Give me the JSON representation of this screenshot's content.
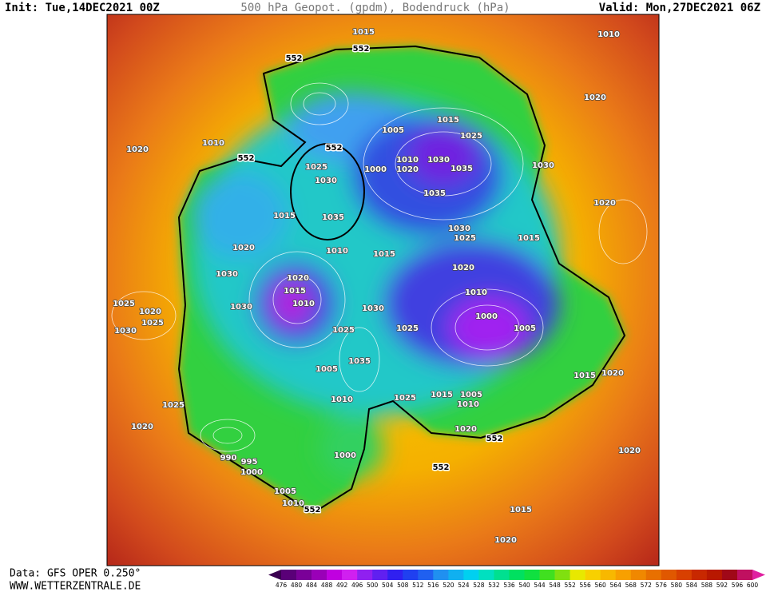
{
  "header": {
    "init": "Init: Tue,14DEC2021 00Z",
    "title": "500 hPa Geopot. (gpdm), Bodendruck (hPa)",
    "valid": "Valid: Mon,27DEC2021 06Z"
  },
  "footer": {
    "data": "Data: GFS OPER 0.250°",
    "url": "WWW.WETTERZENTRALE.DE"
  },
  "map": {
    "contour_labels": [
      1015,
      1010,
      552,
      552,
      1020,
      1005,
      1015,
      1025,
      1020,
      1010,
      552,
      552,
      1030,
      1010,
      1020,
      1000,
      1035,
      1030,
      1025,
      1030,
      1035,
      1020,
      1015,
      1035,
      1030,
      1025,
      1015,
      1020,
      1010,
      1015,
      1020,
      1030,
      1020,
      1015,
      1010,
      1010,
      1025,
      1020,
      1030,
      1030,
      1000,
      1005,
      1025,
      1030,
      1025,
      1025,
      1035,
      1005,
      1015,
      1020,
      1010,
      1025,
      1015,
      1005,
      1010,
      1025,
      1020,
      1020,
      552,
      1000,
      990,
      995,
      1000,
      1020,
      552,
      1005,
      1010,
      552,
      1015,
      1020
    ]
  },
  "colorbar": {
    "labels": [
      476,
      480,
      484,
      488,
      492,
      496,
      500,
      504,
      508,
      512,
      516,
      520,
      524,
      528,
      532,
      536,
      540,
      544,
      548,
      552,
      556,
      560,
      564,
      568,
      572,
      576,
      580,
      584,
      588,
      592,
      596,
      600
    ],
    "colors": [
      "#3a0050",
      "#5a0078",
      "#7a0098",
      "#9a00b8",
      "#c000e0",
      "#d020f0",
      "#9020f0",
      "#6020f0",
      "#3020f0",
      "#2040f0",
      "#2060f0",
      "#2090f0",
      "#10b0f0",
      "#00d0f0",
      "#00e0c0",
      "#00e090",
      "#00e060",
      "#10e040",
      "#40e020",
      "#80e010",
      "#e8e800",
      "#f8d000",
      "#f8b800",
      "#f8a000",
      "#f08800",
      "#e87000",
      "#e05800",
      "#d84000",
      "#c82800",
      "#b81800",
      "#a00818",
      "#c01060",
      "#e020a0"
    ]
  }
}
